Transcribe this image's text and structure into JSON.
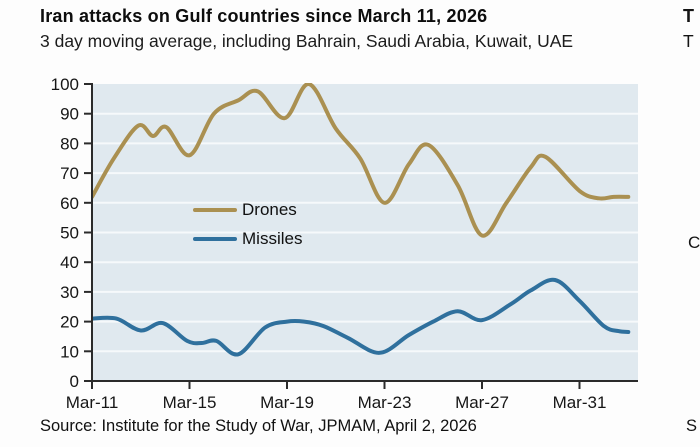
{
  "page": {
    "title": "Iran attacks on Gulf countries since March 11, 2026",
    "subtitle": "3 day moving average, including Bahrain, Saudi Arabia, Kuwait, UAE",
    "source": "Source: Institute for the Study of War, JPMAM, April 2, 2026",
    "right_edge_fragments": {
      "title_fragment": "T",
      "subtitle_fragment": "T",
      "middle_fragment": "C",
      "source_fragment": "S"
    }
  },
  "chart_data": {
    "type": "line",
    "title": "Iran attacks on Gulf countries since March 11, 2026",
    "subtitle": "3 day moving average, including Bahrain, Saudi Arabia, Kuwait, UAE",
    "source": "Source: Institute for the Study of War, JPMAM, April 2, 2026",
    "xlabel": "",
    "ylabel": "",
    "ylim": [
      0,
      100
    ],
    "yticks": [
      0,
      10,
      20,
      30,
      40,
      50,
      60,
      70,
      80,
      90,
      100
    ],
    "x_unit": "days since Mar-11",
    "x_domain_days": [
      0,
      22.4
    ],
    "xticks": [
      {
        "day": 0,
        "label": "Mar-11"
      },
      {
        "day": 4,
        "label": "Mar-15"
      },
      {
        "day": 8,
        "label": "Mar-19"
      },
      {
        "day": 12,
        "label": "Mar-23"
      },
      {
        "day": 16,
        "label": "Mar-27"
      },
      {
        "day": 20,
        "label": "Mar-31"
      }
    ],
    "grid": "horizontal white gridlines on light-blue panel",
    "legend_position": "inside upper-left-center",
    "panel_bg": "#e0e9ef",
    "gridline_color": "#f6f9fb",
    "axis_color": "#2b2b2b",
    "series": [
      {
        "name": "Drones",
        "color": "#aa9051",
        "points": [
          [
            0,
            62
          ],
          [
            0.9,
            75
          ],
          [
            1.9,
            86
          ],
          [
            2.5,
            82.5
          ],
          [
            3.05,
            85.5
          ],
          [
            4,
            76
          ],
          [
            5,
            90
          ],
          [
            6,
            94.5
          ],
          [
            6.8,
            97.5
          ],
          [
            7.9,
            88.5
          ],
          [
            8.9,
            100
          ],
          [
            10,
            85
          ],
          [
            11,
            75
          ],
          [
            12,
            60
          ],
          [
            13,
            73
          ],
          [
            13.8,
            79.5
          ],
          [
            15,
            66
          ],
          [
            16,
            49
          ],
          [
            17,
            60
          ],
          [
            18,
            72
          ],
          [
            18.6,
            75.5
          ],
          [
            20,
            64
          ],
          [
            20.8,
            61.5
          ],
          [
            21.4,
            62
          ],
          [
            22,
            62
          ]
        ]
      },
      {
        "name": "Missiles",
        "color": "#2f709d",
        "points": [
          [
            0,
            21
          ],
          [
            1,
            21
          ],
          [
            2,
            17
          ],
          [
            2.9,
            19.5
          ],
          [
            3.9,
            13.5
          ],
          [
            4.5,
            12.8
          ],
          [
            5.1,
            13.5
          ],
          [
            6,
            9
          ],
          [
            7.1,
            18
          ],
          [
            8,
            20
          ],
          [
            8.7,
            20
          ],
          [
            9.5,
            18.5
          ],
          [
            10.5,
            14.5
          ],
          [
            11.8,
            9.5
          ],
          [
            13,
            15.5
          ],
          [
            14,
            20
          ],
          [
            15,
            23.5
          ],
          [
            16,
            20.5
          ],
          [
            17.2,
            26
          ],
          [
            18,
            30.5
          ],
          [
            19,
            34
          ],
          [
            20,
            27
          ],
          [
            21,
            18.5
          ],
          [
            21.6,
            16.8
          ],
          [
            22,
            16.5
          ]
        ]
      }
    ]
  }
}
